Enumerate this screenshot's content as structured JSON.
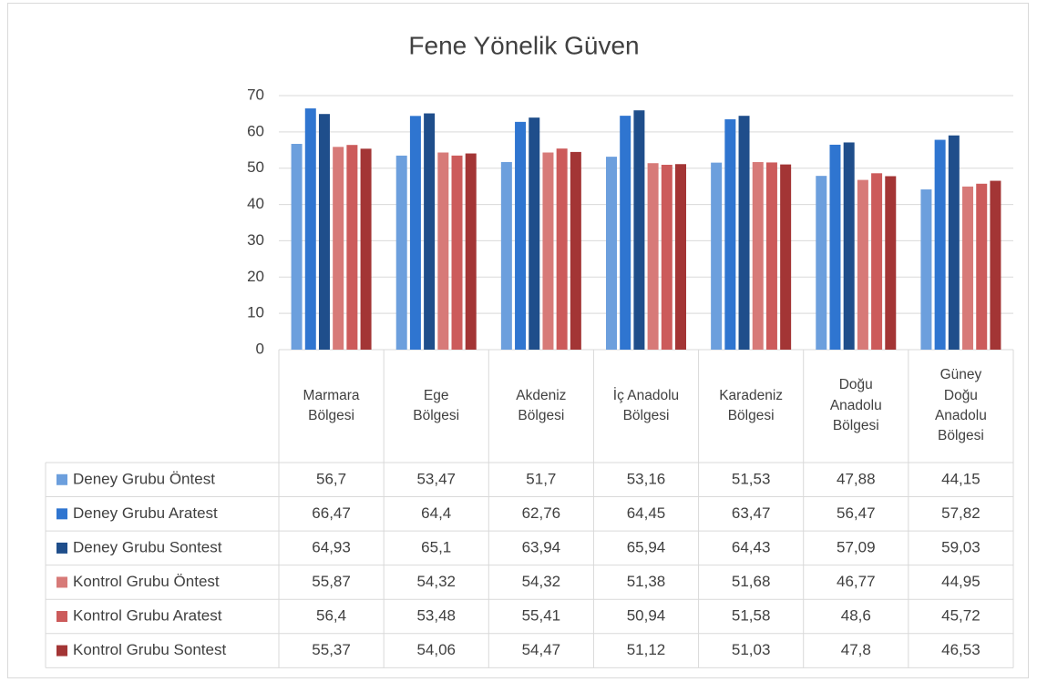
{
  "chart_data": {
    "type": "bar",
    "title": "Fene Yönelik Güven",
    "categories": [
      "Marmara Bölgesi",
      "Ege Bölgesi",
      "Akdeniz Bölgesi",
      "İç Anadolu Bölgesi",
      "Karadeniz Bölgesi",
      "Doğu Anadolu Bölgesi",
      "Güney Doğu Anadolu Bölgesi"
    ],
    "series": [
      {
        "name": "Deney Grubu Öntest",
        "color": "#6c9fdd",
        "values": [
          56.7,
          53.47,
          51.7,
          53.16,
          51.53,
          47.88,
          44.15
        ],
        "value_labels": [
          "56,7",
          "53,47",
          "51,7",
          "53,16",
          "51,53",
          "47,88",
          "44,15"
        ]
      },
      {
        "name": "Deney Grubu Aratest",
        "color": "#2f75d0",
        "values": [
          66.47,
          64.4,
          62.76,
          64.45,
          63.47,
          56.47,
          57.82
        ],
        "value_labels": [
          "66,47",
          "64,4",
          "62,76",
          "64,45",
          "63,47",
          "56,47",
          "57,82"
        ]
      },
      {
        "name": "Deney Grubu Sontest",
        "color": "#1f4e8b",
        "values": [
          64.93,
          65.1,
          63.94,
          65.94,
          64.43,
          57.09,
          59.03
        ],
        "value_labels": [
          "64,93",
          "65,1",
          "63,94",
          "65,94",
          "64,43",
          "57,09",
          "59,03"
        ]
      },
      {
        "name": "Kontrol Grubu Öntest",
        "color": "#d77a78",
        "values": [
          55.87,
          54.32,
          54.32,
          51.38,
          51.68,
          46.77,
          44.95
        ],
        "value_labels": [
          "55,87",
          "54,32",
          "54,32",
          "51,38",
          "51,68",
          "46,77",
          "44,95"
        ]
      },
      {
        "name": "Kontrol Grubu Aratest",
        "color": "#cc5b5b",
        "values": [
          56.4,
          53.48,
          55.41,
          50.94,
          51.58,
          48.6,
          45.72
        ],
        "value_labels": [
          "56,4",
          "53,48",
          "55,41",
          "50,94",
          "51,58",
          "48,6",
          "45,72"
        ]
      },
      {
        "name": "Kontrol Grubu Sontest",
        "color": "#a33535",
        "values": [
          55.37,
          54.06,
          54.47,
          51.12,
          51.03,
          47.8,
          46.53
        ],
        "value_labels": [
          "55,37",
          "54,06",
          "54,47",
          "51,12",
          "51,03",
          "47,8",
          "46,53"
        ]
      }
    ],
    "ylim": [
      0,
      70
    ],
    "yticks": [
      0,
      10,
      20,
      30,
      40,
      50,
      60,
      70
    ],
    "grid": true
  }
}
